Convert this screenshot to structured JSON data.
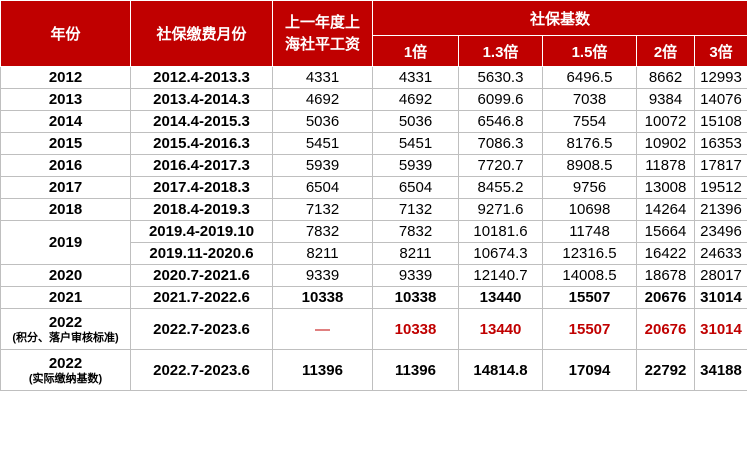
{
  "headers": {
    "year": "年份",
    "period": "社保缴费月份",
    "avg_salary_line1": "上一年度上",
    "avg_salary_line2": "海社平工资",
    "base_group": "社保基数",
    "multipliers": [
      "1倍",
      "1.3倍",
      "1.5倍",
      "2倍",
      "3倍"
    ]
  },
  "rows": [
    {
      "year": "2012",
      "period": "2012.4-2013.3",
      "avg": "4331",
      "vals": [
        "4331",
        "5630.3",
        "6496.5",
        "8662",
        "12993"
      ]
    },
    {
      "year": "2013",
      "period": "2013.4-2014.3",
      "avg": "4692",
      "vals": [
        "4692",
        "6099.6",
        "7038",
        "9384",
        "14076"
      ]
    },
    {
      "year": "2014",
      "period": "2014.4-2015.3",
      "avg": "5036",
      "vals": [
        "5036",
        "6546.8",
        "7554",
        "10072",
        "15108"
      ]
    },
    {
      "year": "2015",
      "period": "2015.4-2016.3",
      "avg": "5451",
      "vals": [
        "5451",
        "7086.3",
        "8176.5",
        "10902",
        "16353"
      ]
    },
    {
      "year": "2016",
      "period": "2016.4-2017.3",
      "avg": "5939",
      "vals": [
        "5939",
        "7720.7",
        "8908.5",
        "11878",
        "17817"
      ]
    },
    {
      "year": "2017",
      "period": "2017.4-2018.3",
      "avg": "6504",
      "vals": [
        "6504",
        "8455.2",
        "9756",
        "13008",
        "19512"
      ]
    },
    {
      "year": "2018",
      "period": "2018.4-2019.3",
      "avg": "7132",
      "vals": [
        "7132",
        "9271.6",
        "10698",
        "14264",
        "21396"
      ]
    },
    {
      "year": "2019",
      "period": "2019.4-2019.10",
      "avg": "7832",
      "vals": [
        "7832",
        "10181.6",
        "11748",
        "15664",
        "23496"
      ]
    },
    {
      "year": "",
      "period": "2019.11-2020.6",
      "avg": "8211",
      "vals": [
        "8211",
        "10674.3",
        "12316.5",
        "16422",
        "24633"
      ]
    },
    {
      "year": "2020",
      "period": "2020.7-2021.6",
      "avg": "9339",
      "vals": [
        "9339",
        "12140.7",
        "14008.5",
        "18678",
        "28017"
      ]
    },
    {
      "year": "2021",
      "period": "2021.7-2022.6",
      "avg": "10338",
      "vals": [
        "10338",
        "13440",
        "15507",
        "20676",
        "31014"
      ]
    },
    {
      "year": "2022",
      "year_note": "(积分、落户审核标准)",
      "period": "2022.7-2023.6",
      "avg": "—",
      "vals": [
        "10338",
        "13440",
        "15507",
        "20676",
        "31014"
      ]
    },
    {
      "year": "2022",
      "year_note": "(实际缴纳基数)",
      "period": "2022.7-2023.6",
      "avg": "11396",
      "vals": [
        "11396",
        "14814.8",
        "17094",
        "22792",
        "34188"
      ]
    }
  ],
  "colors": {
    "header_bg": "#c00000",
    "highlight_red": "#c00000"
  }
}
